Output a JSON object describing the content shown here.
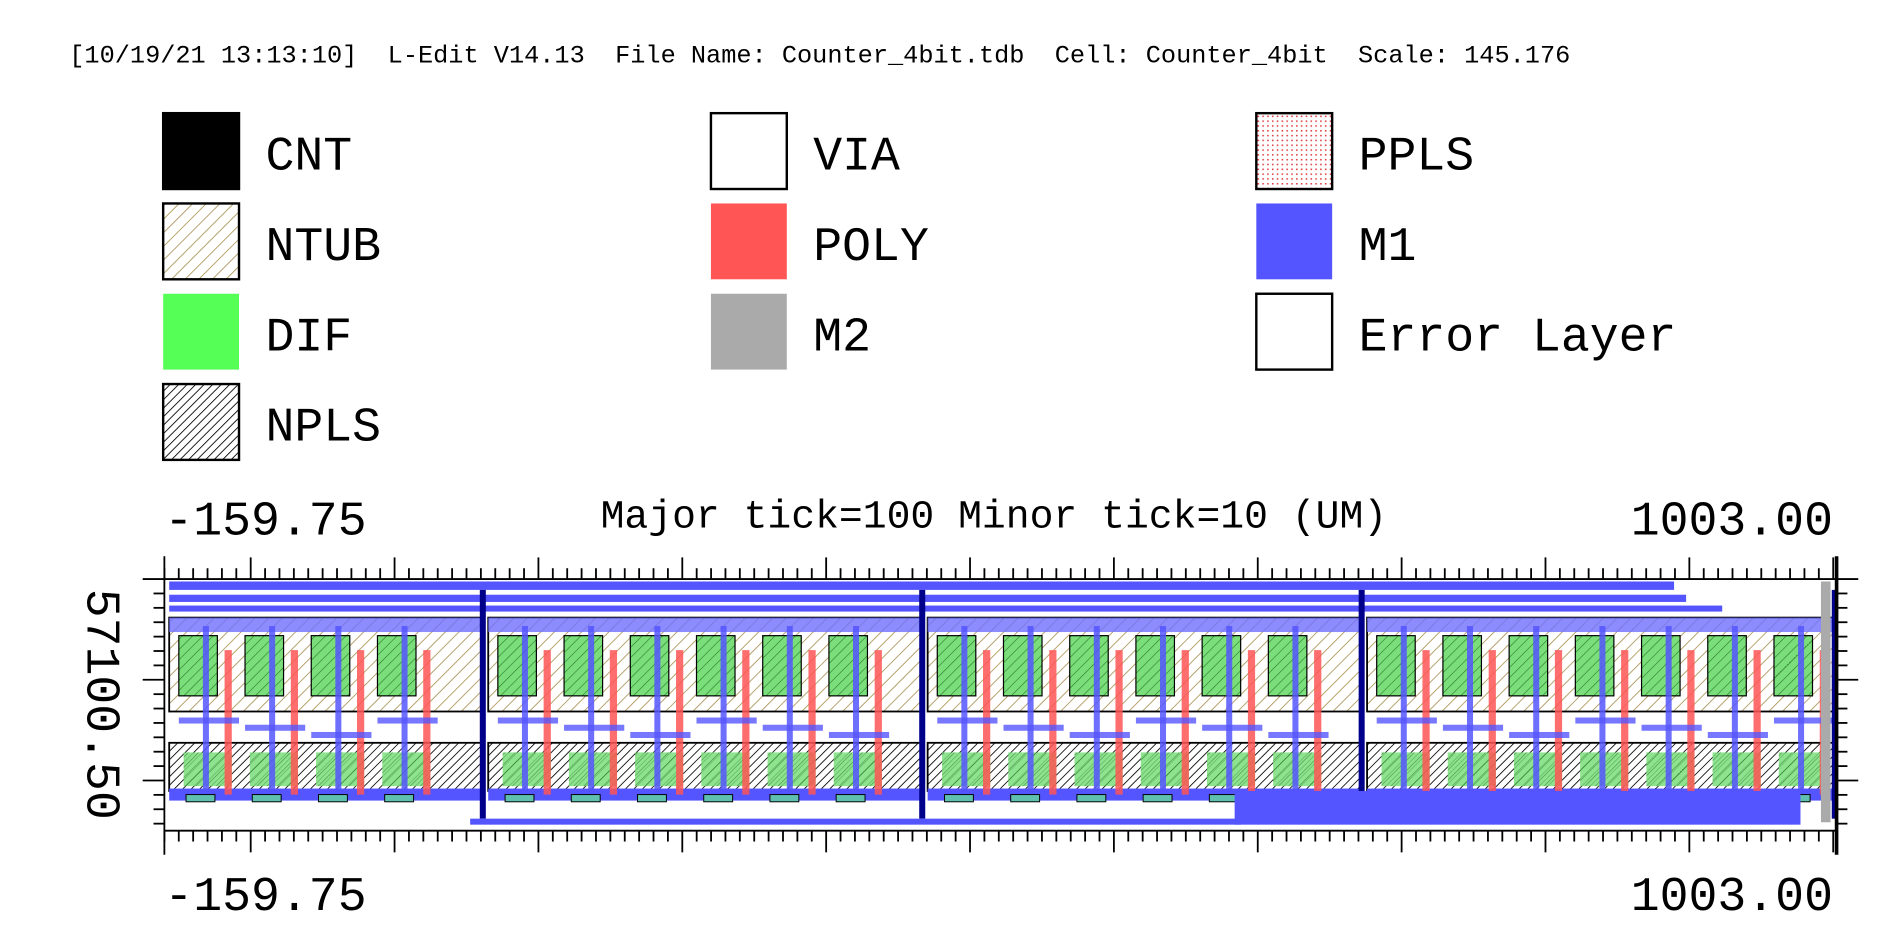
{
  "header": "[10/19/21 13:13:10]  L-Edit V14.13  File Name: Counter_4bit.tdb  Cell: Counter_4bit  Scale: 145.176",
  "legend": [
    {
      "label": "CNT"
    },
    {
      "label": "NTUB"
    },
    {
      "label": "DIF"
    },
    {
      "label": "NPLS"
    },
    {
      "label": "VIA"
    },
    {
      "label": "POLY"
    },
    {
      "label": "M2"
    },
    {
      "label": "PPLS"
    },
    {
      "label": "M1"
    },
    {
      "label": "Error Layer"
    }
  ],
  "axis": {
    "top_left": "-159.75",
    "top_right": "1003.00",
    "tick_note": "Major tick=100 Minor tick=10 (UM)",
    "bottom_left": "-159.75",
    "bottom_right": "1003.00",
    "side_label": "57100.50"
  }
}
